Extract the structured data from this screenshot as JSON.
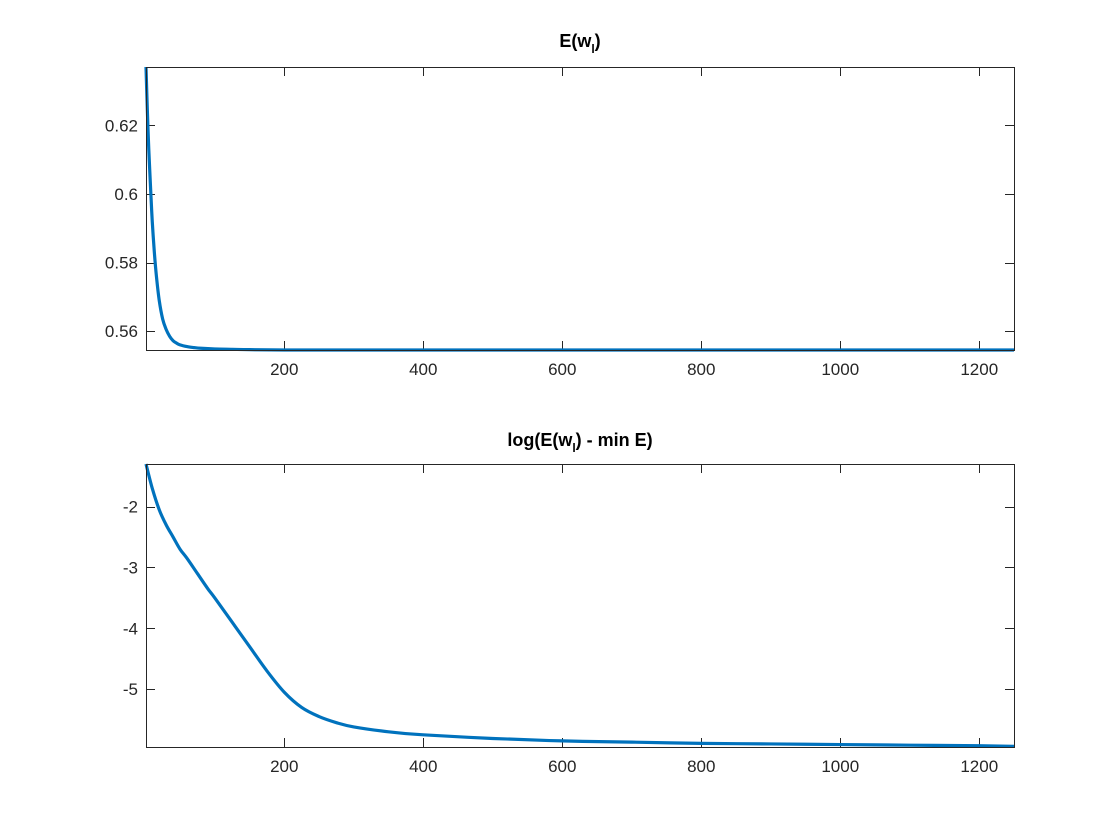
{
  "chart_data": [
    {
      "type": "line",
      "title_main": "E(w",
      "title_sub": "l",
      "title_tail": ")",
      "xlim": [
        1,
        1250
      ],
      "ylim": [
        0.5545,
        0.637
      ],
      "x_ticks": [
        200,
        400,
        600,
        800,
        1000,
        1200
      ],
      "y_ticks": [
        0.56,
        0.58,
        0.6,
        0.62
      ],
      "y_tick_labels": [
        "0.56",
        "0.58",
        "0.6",
        "0.62"
      ],
      "grid": false,
      "line_color": "#0072BD",
      "series": [
        {
          "x": [
            1,
            3,
            5,
            8,
            10,
            13,
            16,
            20,
            25,
            30,
            35,
            40,
            45,
            50,
            60,
            70,
            80,
            100,
            125,
            150,
            200,
            300,
            400,
            600,
            800,
            1000,
            1250
          ],
          "y": [
            0.637,
            0.624,
            0.613,
            0.6,
            0.592,
            0.583,
            0.576,
            0.569,
            0.5635,
            0.5605,
            0.5585,
            0.5572,
            0.5565,
            0.556,
            0.5555,
            0.5552,
            0.555,
            0.5548,
            0.5547,
            0.5546,
            0.5545,
            0.5545,
            0.5545,
            0.5545,
            0.5545,
            0.5545,
            0.5545
          ]
        }
      ]
    },
    {
      "type": "line",
      "title_main": "log(E(w",
      "title_sub": "l",
      "title_tail": ") - min E)",
      "xlim": [
        1,
        1250
      ],
      "ylim": [
        -5.95,
        -1.3
      ],
      "x_ticks": [
        200,
        400,
        600,
        800,
        1000,
        1200
      ],
      "y_ticks": [
        -5,
        -4,
        -3,
        -2
      ],
      "y_tick_labels": [
        "-5",
        "-4",
        "-3",
        "-2"
      ],
      "grid": false,
      "line_color": "#0072BD",
      "series": [
        {
          "x": [
            1,
            10,
            20,
            30,
            40,
            50,
            60,
            75,
            90,
            100,
            125,
            150,
            175,
            200,
            225,
            250,
            275,
            300,
            350,
            400,
            500,
            600,
            700,
            800,
            900,
            1000,
            1100,
            1200,
            1250
          ],
          "y": [
            -1.3,
            -1.7,
            -2.05,
            -2.3,
            -2.5,
            -2.7,
            -2.85,
            -3.1,
            -3.35,
            -3.5,
            -3.9,
            -4.3,
            -4.7,
            -5.05,
            -5.3,
            -5.45,
            -5.55,
            -5.62,
            -5.7,
            -5.75,
            -5.81,
            -5.85,
            -5.87,
            -5.89,
            -5.9,
            -5.91,
            -5.92,
            -5.93,
            -5.94
          ]
        }
      ]
    }
  ]
}
